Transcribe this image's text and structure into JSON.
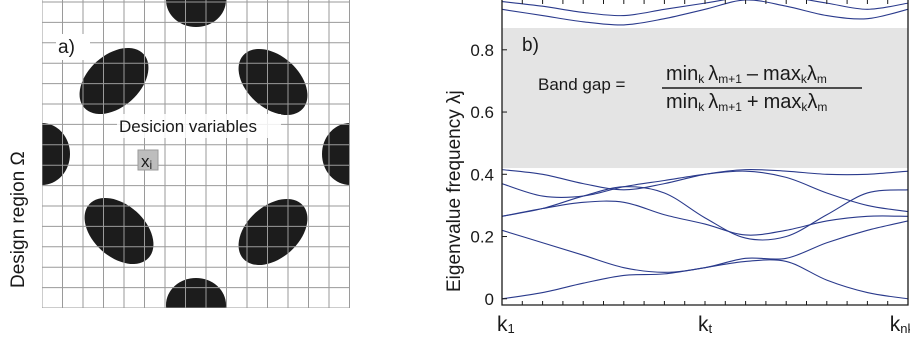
{
  "panel_a": {
    "label": "a)",
    "y_label": "Design region Ω",
    "annotation": "Desicion variables",
    "cell_label": "x",
    "cell_label_sub": "i"
  },
  "panel_b": {
    "label": "b)",
    "formula": {
      "lhs": "Band gap =",
      "numerator": "min",
      "numerator_k": "k",
      "numerator_lambda": "λ",
      "numerator_sub": "m+1",
      "numerator_op": "–",
      "numerator_max": "max",
      "numerator_max_k": "k",
      "numerator_max_lambda": "λ",
      "numerator_max_sub": "m",
      "denominator": "min",
      "denominator_k": "k",
      "denominator_lambda": "λ",
      "denominator_sub": "m+1",
      "denominator_op": "+",
      "denominator_max": "max",
      "denominator_max_k": "k",
      "denominator_max_lambda": "λ",
      "denominator_max_sub": "m"
    },
    "colors": {
      "band": "#2a3a8c",
      "gap": "#e4e4e4",
      "grid": "#9a9a9a",
      "inclusion": "#1c1c1c"
    }
  },
  "chart_data": {
    "type": "line",
    "title": "",
    "xlabel": "",
    "ylabel": "Eigenvalue frequency λj",
    "x_ticks": [
      {
        "main": "k",
        "sub": "1"
      },
      {
        "main": "k",
        "sub": "t"
      },
      {
        "main": "k",
        "sub": "nk"
      }
    ],
    "yticks": [
      "0",
      "0.2",
      "0.4",
      "0.6",
      "0.8"
    ],
    "ylim": [
      -0.02,
      0.96
    ],
    "band_gap": [
      0.42,
      0.87
    ],
    "x": [
      0,
      0.1,
      0.2,
      0.3,
      0.4,
      0.5,
      0.6,
      0.7,
      0.8,
      0.9,
      1.0
    ],
    "series": [
      {
        "values": [
          0.0,
          0.02,
          0.05,
          0.075,
          0.08,
          0.1,
          0.12,
          0.12,
          0.06,
          0.02,
          0.0
        ]
      },
      {
        "values": [
          0.22,
          0.18,
          0.14,
          0.1,
          0.085,
          0.1,
          0.13,
          0.13,
          0.18,
          0.22,
          0.25
        ]
      },
      {
        "values": [
          0.265,
          0.29,
          0.31,
          0.31,
          0.27,
          0.24,
          0.205,
          0.22,
          0.25,
          0.265,
          0.265
        ]
      },
      {
        "values": [
          0.265,
          0.29,
          0.33,
          0.36,
          0.34,
          0.26,
          0.195,
          0.2,
          0.27,
          0.34,
          0.35
        ]
      },
      {
        "values": [
          0.37,
          0.33,
          0.33,
          0.36,
          0.38,
          0.4,
          0.41,
          0.39,
          0.34,
          0.3,
          0.28
        ]
      },
      {
        "values": [
          0.415,
          0.4,
          0.37,
          0.35,
          0.37,
          0.4,
          0.415,
          0.41,
          0.4,
          0.4,
          0.41
        ]
      },
      {
        "values": [
          0.93,
          0.91,
          0.89,
          0.88,
          0.9,
          0.93,
          0.96,
          0.94,
          0.91,
          0.9,
          0.93
        ]
      },
      {
        "values": [
          0.955,
          0.94,
          0.92,
          0.91,
          0.93,
          0.95,
          0.97,
          0.97,
          0.95,
          0.93,
          0.95
        ]
      }
    ]
  }
}
